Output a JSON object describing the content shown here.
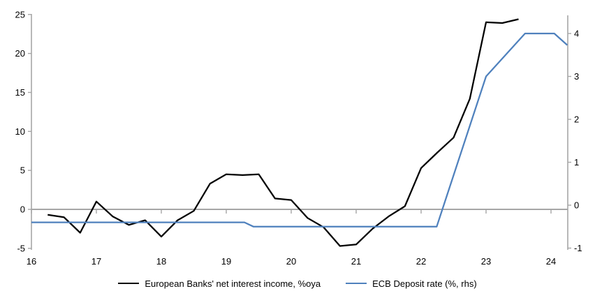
{
  "chart_data": {
    "type": "line",
    "title": "",
    "x_axis": {
      "tick_labels": [
        16,
        17,
        18,
        19,
        20,
        21,
        22,
        23,
        24
      ],
      "range": [
        16,
        24.26
      ]
    },
    "left_axis": {
      "tick_labels": [
        25,
        20,
        15,
        10,
        5,
        0,
        -5
      ],
      "range": [
        -5,
        25
      ]
    },
    "right_axis": {
      "tick_labels": [
        4,
        3,
        2,
        1,
        0,
        -1
      ],
      "range": [
        -1.05,
        4.45
      ]
    },
    "grid": "zero-line-only",
    "legend_position": "bottom-center",
    "series": [
      {
        "name": "European Banks' net interest income, %oya",
        "axis": "left",
        "color": "#000000",
        "x": [
          16.25,
          16.5,
          16.75,
          17.0,
          17.25,
          17.5,
          17.75,
          18.0,
          18.25,
          18.5,
          18.75,
          19.0,
          19.25,
          19.5,
          19.75,
          20.0,
          20.25,
          20.5,
          20.75,
          21.0,
          21.25,
          21.5,
          21.75,
          22.0,
          22.25,
          22.5,
          22.75,
          23.0,
          23.25,
          23.5
        ],
        "values": [
          -0.7,
          -1.0,
          -3.0,
          1.0,
          -0.9,
          -2.0,
          -1.4,
          -3.5,
          -1.4,
          -0.2,
          3.3,
          4.5,
          4.4,
          4.5,
          1.4,
          1.2,
          -1.1,
          -2.3,
          -4.7,
          -4.5,
          -2.5,
          -0.9,
          0.4,
          5.3,
          7.3,
          9.2,
          14.2,
          24.0,
          23.9,
          24.4
        ]
      },
      {
        "name": "ECB Deposit rate (%, rhs)",
        "axis": "right",
        "color": "#4f81bd",
        "x": [
          16.0,
          19.28,
          19.42,
          22.24,
          23.0,
          23.6,
          24.05,
          24.25
        ],
        "values": [
          -0.4,
          -0.4,
          -0.5,
          -0.5,
          3.0,
          4.0,
          4.0,
          3.73
        ]
      }
    ]
  },
  "colors": {
    "axis": "#a6a6a6",
    "zero_line": "#a6a6a6",
    "background": "#ffffff",
    "text": "#000000"
  }
}
